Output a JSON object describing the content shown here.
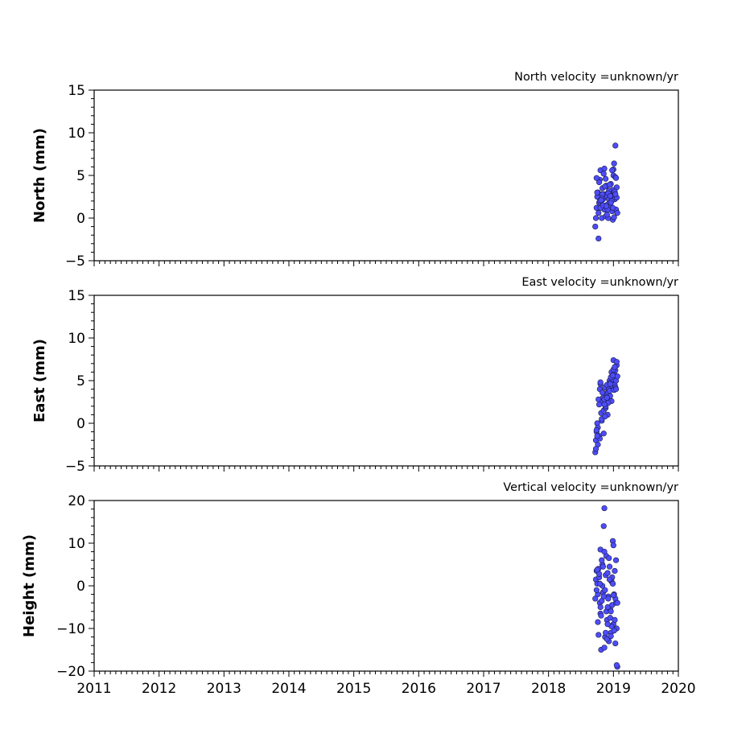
{
  "chart_data": [
    {
      "type": "scatter",
      "title": "North velocity =unknown/yr",
      "ylabel": "North (mm)",
      "xlim": [
        2011,
        2020
      ],
      "ylim": [
        -5,
        15
      ],
      "yticks": [
        -5,
        0,
        5,
        10,
        15
      ],
      "ytick_labels": [
        "−5",
        "0",
        "5",
        "10",
        "15"
      ],
      "color": "#4d4dff",
      "grid": false,
      "series": [
        {
          "x": [
            2018.72,
            2018.73,
            2018.74,
            2018.75,
            2018.76,
            2018.77,
            2018.78,
            2018.79,
            2018.8,
            2018.81,
            2018.82,
            2018.83,
            2018.84,
            2018.85,
            2018.86,
            2018.87,
            2018.88,
            2018.89,
            2018.9,
            2018.91,
            2018.92,
            2018.93,
            2018.94,
            2018.95,
            2018.96,
            2018.97,
            2018.98,
            2018.99,
            2019.0,
            2019.01,
            2019.02,
            2019.03,
            2019.04,
            2019.05,
            2019.06,
            2018.78,
            2018.8,
            2018.83,
            2018.86,
            2018.9,
            2018.93,
            2018.97,
            2019.0,
            2019.03,
            2019.05,
            2018.75,
            2018.79,
            2018.84,
            2018.88,
            2018.92,
            2018.96,
            2018.99,
            2019.02,
            2019.04,
            2018.77,
            2018.82,
            2018.87,
            2018.91,
            2018.95,
            2018.98,
            2019.01,
            2018.74,
            2018.81,
            2018.89,
            2018.94,
            2019.03,
            2018.99
          ],
          "y": [
            -1.0,
            0.0,
            1.2,
            2.5,
            3.0,
            -2.4,
            1.8,
            4.5,
            5.6,
            2.0,
            0.0,
            3.5,
            2.2,
            5.2,
            1.0,
            2.8,
            0.2,
            3.8,
            2.5,
            1.6,
            0.0,
            2.2,
            3.0,
            1.5,
            4.0,
            2.6,
            0.8,
            3.3,
            5.0,
            6.4,
            2.2,
            4.8,
            1.0,
            3.6,
            0.6,
            4.2,
            1.2,
            2.8,
            5.8,
            0.4,
            3.2,
            2.0,
            5.7,
            8.5,
            2.4,
            3.0,
            2.0,
            1.5,
            4.6,
            2.9,
            1.8,
            -0.2,
            3.1,
            4.7,
            0.6,
            2.3,
            3.7,
            1.0,
            2.6,
            5.6,
            0.1,
            4.7,
            2.1,
            1.4,
            3.9,
            2.8,
            1.2
          ]
        }
      ]
    },
    {
      "type": "scatter",
      "title": "East velocity =unknown/yr",
      "ylabel": "East (mm)",
      "xlim": [
        2011,
        2020
      ],
      "ylim": [
        -5,
        15
      ],
      "yticks": [
        -5,
        0,
        5,
        10,
        15
      ],
      "ytick_labels": [
        "−5",
        "0",
        "5",
        "10",
        "15"
      ],
      "color": "#4d4dff",
      "grid": false,
      "series": [
        {
          "x": [
            2018.72,
            2018.73,
            2018.74,
            2018.75,
            2018.76,
            2018.77,
            2018.78,
            2018.79,
            2018.8,
            2018.81,
            2018.82,
            2018.83,
            2018.84,
            2018.85,
            2018.86,
            2018.87,
            2018.88,
            2018.89,
            2018.9,
            2018.91,
            2018.92,
            2018.93,
            2018.94,
            2018.95,
            2018.96,
            2018.97,
            2018.98,
            2018.99,
            2019.0,
            2019.01,
            2019.02,
            2019.03,
            2019.04,
            2019.05,
            2019.06,
            2018.73,
            2018.76,
            2018.79,
            2018.82,
            2018.85,
            2018.88,
            2018.91,
            2018.94,
            2018.97,
            2019.0,
            2019.03,
            2019.05,
            2018.74,
            2018.78,
            2018.83,
            2018.87,
            2018.92,
            2018.96,
            2019.01,
            2019.04,
            2018.75,
            2018.8,
            2018.86,
            2018.9,
            2018.95,
            2018.99,
            2019.02
          ],
          "y": [
            -3.4,
            -2.0,
            -1.0,
            0.0,
            -2.5,
            2.8,
            -1.5,
            4.0,
            4.6,
            1.2,
            0.3,
            2.5,
            3.0,
            1.5,
            2.8,
            4.2,
            1.8,
            3.5,
            4.5,
            2.9,
            3.6,
            4.0,
            5.0,
            3.2,
            4.8,
            6.0,
            4.4,
            5.2,
            7.4,
            5.8,
            4.5,
            6.2,
            5.0,
            6.8,
            5.5,
            -3.0,
            -0.5,
            -1.8,
            0.5,
            -1.2,
            2.0,
            1.0,
            3.8,
            2.6,
            6.3,
            4.2,
            7.2,
            -0.8,
            2.2,
            3.6,
            0.8,
            2.4,
            5.4,
            3.9,
            4.0,
            -1.5,
            4.8,
            2.2,
            3.0,
            4.6,
            5.6,
            6.6
          ]
        }
      ]
    },
    {
      "type": "scatter",
      "title": "Vertical velocity =unknown/yr",
      "ylabel": "Height (mm)",
      "xlim": [
        2011,
        2020
      ],
      "ylim": [
        -20,
        20
      ],
      "yticks": [
        -20,
        -10,
        0,
        10,
        20
      ],
      "ytick_labels": [
        "−20",
        "−10",
        "0",
        "10",
        "20"
      ],
      "xticks": [
        2011,
        2012,
        2013,
        2014,
        2015,
        2016,
        2017,
        2018,
        2019,
        2020
      ],
      "xtick_labels": [
        "2011",
        "2012",
        "2013",
        "2014",
        "2015",
        "2016",
        "2017",
        "2018",
        "2019",
        "2020"
      ],
      "color": "#4d4dff",
      "grid": false,
      "series": [
        {
          "x": [
            2018.72,
            2018.73,
            2018.74,
            2018.75,
            2018.76,
            2018.77,
            2018.78,
            2018.79,
            2018.8,
            2018.81,
            2018.82,
            2018.83,
            2018.84,
            2018.85,
            2018.86,
            2018.87,
            2018.88,
            2018.89,
            2018.9,
            2018.91,
            2018.92,
            2018.93,
            2018.94,
            2018.95,
            2018.96,
            2018.97,
            2018.98,
            2018.99,
            2019.0,
            2019.01,
            2019.02,
            2019.03,
            2019.04,
            2019.05,
            2019.06,
            2018.74,
            2018.77,
            2018.8,
            2018.83,
            2018.86,
            2018.89,
            2018.92,
            2018.95,
            2018.98,
            2019.01,
            2019.04,
            2018.76,
            2018.79,
            2018.82,
            2018.85,
            2018.88,
            2018.91,
            2018.94,
            2018.97,
            2019.0,
            2019.03,
            2019.06,
            2018.78,
            2018.81,
            2018.84,
            2018.87,
            2018.9,
            2018.93,
            2018.96,
            2018.99,
            2019.02,
            2019.05,
            2018.75,
            2018.8,
            2018.86,
            2018.91,
            2018.96,
            2019.0
          ],
          "y": [
            -3.0,
            1.5,
            3.5,
            0.5,
            -2.0,
            -11.5,
            2.0,
            -4.0,
            8.5,
            -15.0,
            -3.5,
            5.0,
            -1.5,
            14.0,
            18.2,
            -12.0,
            2.5,
            -6.0,
            -8.0,
            3.0,
            -2.5,
            -13.0,
            4.5,
            -5.5,
            -11.0,
            1.0,
            -4.5,
            10.5,
            -9.0,
            -2.0,
            3.5,
            -13.5,
            6.0,
            -10.0,
            -19.0,
            -1.0,
            4.0,
            -6.5,
            0.0,
            -14.5,
            7.0,
            -3.0,
            -7.5,
            2.0,
            -10.5,
            -4.0,
            -8.5,
            0.5,
            6.0,
            -2.5,
            -11.0,
            -5.0,
            1.5,
            -9.5,
            9.5,
            -3.0,
            -4.0,
            2.8,
            -7.0,
            4.5,
            -1.0,
            -12.5,
            6.5,
            -6.0,
            0.5,
            -8.0,
            -18.6,
            3.8,
            -5.0,
            8.0,
            -9.0,
            -11.8,
            -2.2
          ]
        }
      ]
    }
  ]
}
